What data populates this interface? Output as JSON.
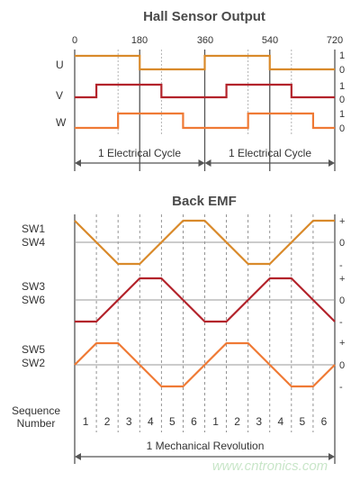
{
  "hall": {
    "title": "Hall Sensor Output",
    "angles": [
      "0",
      "180",
      "360",
      "540",
      "720"
    ],
    "signals": [
      {
        "label": "U",
        "high": "1",
        "low": "0",
        "color": "#d98a2b"
      },
      {
        "label": "V",
        "high": "1",
        "low": "0",
        "color": "#b3232b"
      },
      {
        "label": "W",
        "high": "1",
        "low": "0",
        "color": "#ef7a35"
      }
    ],
    "cycles": [
      "1 Electrical Cycle",
      "1 Electrical Cycle"
    ]
  },
  "emf": {
    "title": "Back EMF",
    "pairs": [
      {
        "top": "SW1",
        "bottom": "SW4",
        "plus": "+",
        "zero": "0",
        "minus": "-",
        "color": "#d98a2b"
      },
      {
        "top": "SW3",
        "bottom": "SW6",
        "plus": "+",
        "zero": "0",
        "minus": "-",
        "color": "#b3232b"
      },
      {
        "top": "SW5",
        "bottom": "SW2",
        "plus": "+",
        "zero": "0",
        "minus": "-",
        "color": "#ef7a35"
      }
    ],
    "sequence_label": [
      "Sequence",
      "Number"
    ],
    "sequence": [
      "1",
      "2",
      "3",
      "4",
      "5",
      "6",
      "1",
      "2",
      "3",
      "4",
      "5",
      "6"
    ],
    "revolution": "1 Mechanical Revolution"
  },
  "watermark": "www.cntronics.com",
  "colors": {
    "grid": "#555555",
    "axis": "#444444",
    "dashed": "#7a7a7a"
  }
}
